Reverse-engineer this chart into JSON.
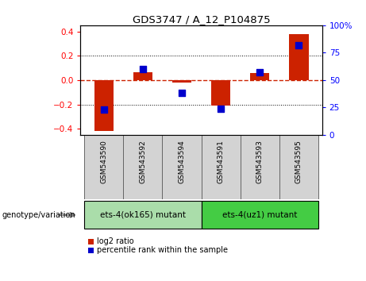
{
  "title": "GDS3747 / A_12_P104875",
  "samples": [
    "GSM543590",
    "GSM543592",
    "GSM543594",
    "GSM543591",
    "GSM543593",
    "GSM543595"
  ],
  "log2_ratio": [
    -0.42,
    0.065,
    -0.02,
    -0.21,
    0.06,
    0.38
  ],
  "percentile_rank": [
    23,
    60,
    38,
    24,
    57,
    82
  ],
  "groups": [
    {
      "label": "ets-4(ok165) mutant",
      "indices": [
        0,
        1,
        2
      ],
      "color": "#aaddaa"
    },
    {
      "label": "ets-4(uz1) mutant",
      "indices": [
        3,
        4,
        5
      ],
      "color": "#44cc44"
    }
  ],
  "ylim_left": [
    -0.45,
    0.45
  ],
  "ylim_right": [
    0,
    100
  ],
  "yticks_left": [
    -0.4,
    -0.2,
    0,
    0.2,
    0.4
  ],
  "yticks_right": [
    0,
    25,
    50,
    75,
    100
  ],
  "bar_color": "#cc2200",
  "dot_color": "#0000cc",
  "zero_line_color": "#cc2200",
  "grid_color": "#000000",
  "bg_color": "#ffffff",
  "plot_bg": "#ffffff",
  "bar_width": 0.5,
  "dot_size": 28,
  "legend_labels": [
    "log2 ratio",
    "percentile rank within the sample"
  ],
  "genotype_label": "genotype/variation"
}
